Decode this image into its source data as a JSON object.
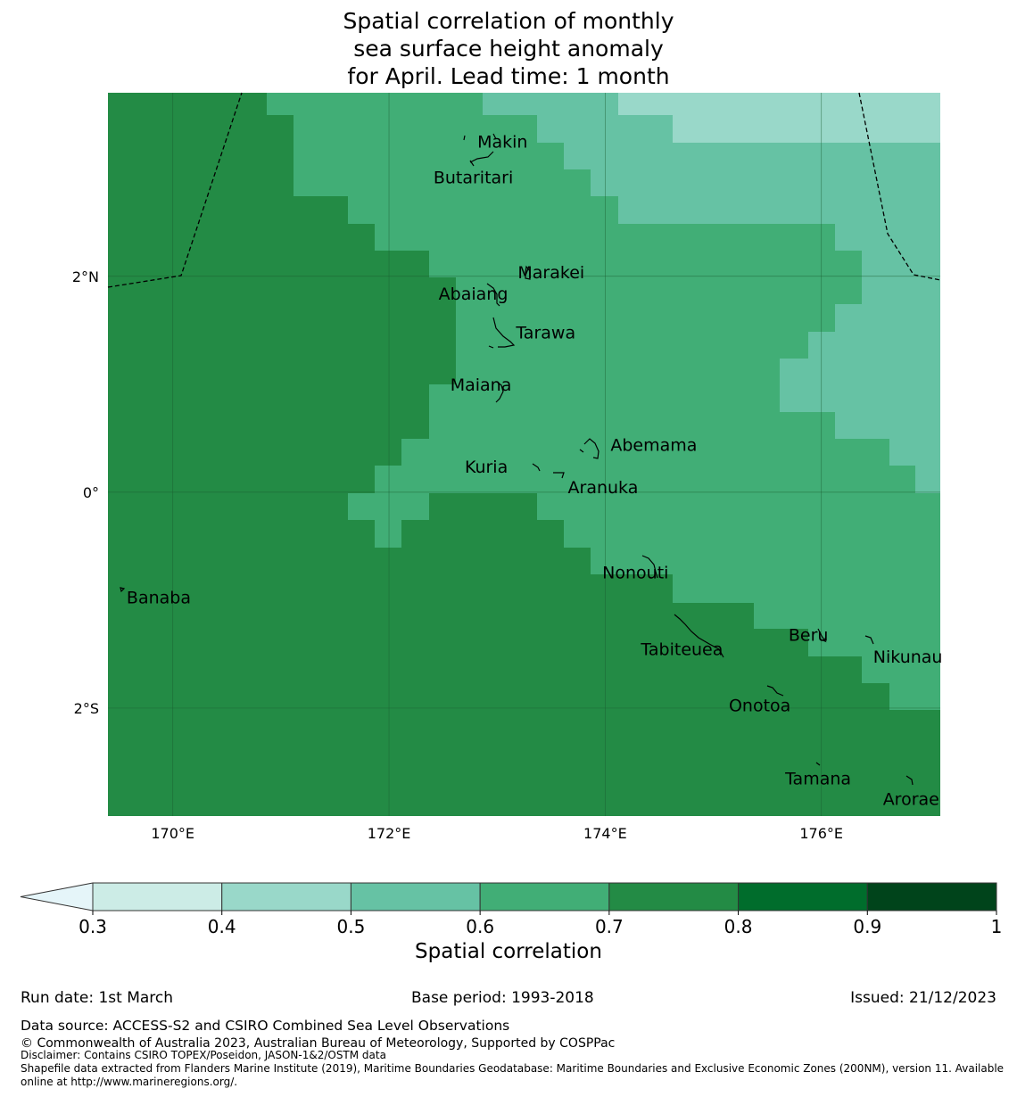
{
  "title": {
    "line1": "Spatial correlation of monthly",
    "line2": "sea surface height anomaly",
    "line3": "for April. Lead time: 1 month"
  },
  "map": {
    "lon_range": [
      169.4,
      177.1
    ],
    "lat_range": [
      -3.0,
      3.7
    ],
    "x_ticks": [
      {
        "value": 170,
        "label": "170°E"
      },
      {
        "value": 172,
        "label": "172°E"
      },
      {
        "value": 174,
        "label": "174°E"
      },
      {
        "value": 176,
        "label": "176°E"
      }
    ],
    "y_ticks": [
      {
        "value": 2,
        "label": "2°N"
      },
      {
        "value": 0,
        "label": "0°"
      },
      {
        "value": -2,
        "label": "2°S"
      }
    ],
    "colors": {
      "0.4-0.5": "#99d8c9",
      "0.5-0.6": "#66c2a4",
      "0.6-0.7": "#41ae76",
      "0.7-0.8": "#238b45",
      "gridline": "#1a5c30",
      "boundary": "#000000"
    },
    "places": [
      {
        "name": "Makin",
        "lon": 173.05,
        "lat": 3.25
      },
      {
        "name": "Butaritari",
        "lon": 172.78,
        "lat": 2.92
      },
      {
        "name": "Marakei",
        "lon": 173.5,
        "lat": 2.04
      },
      {
        "name": "Abaiang",
        "lon": 172.78,
        "lat": 1.84
      },
      {
        "name": "Tarawa",
        "lon": 173.45,
        "lat": 1.48
      },
      {
        "name": "Maiana",
        "lon": 172.85,
        "lat": 1.0
      },
      {
        "name": "Abemama",
        "lon": 174.45,
        "lat": 0.44
      },
      {
        "name": "Kuria",
        "lon": 172.9,
        "lat": 0.24
      },
      {
        "name": "Aranuka",
        "lon": 173.98,
        "lat": 0.05
      },
      {
        "name": "Nonouti",
        "lon": 174.28,
        "lat": -0.74
      },
      {
        "name": "Banaba",
        "lon": 169.87,
        "lat": -0.97
      },
      {
        "name": "Beru",
        "lon": 175.88,
        "lat": -1.32
      },
      {
        "name": "Tabiteuea",
        "lon": 174.71,
        "lat": -1.45
      },
      {
        "name": "Nikunau",
        "lon": 176.8,
        "lat": -1.52
      },
      {
        "name": "Onotoa",
        "lon": 175.43,
        "lat": -1.97
      },
      {
        "name": "Tamana",
        "lon": 175.97,
        "lat": -2.65
      },
      {
        "name": "Arorae",
        "lon": 176.83,
        "lat": -2.84
      }
    ]
  },
  "colorbar": {
    "label": "Spatial correlation",
    "ticks": [
      "0.3",
      "0.4",
      "0.5",
      "0.6",
      "0.7",
      "0.8",
      "0.9",
      "1"
    ],
    "colors": [
      "#ccece6",
      "#99d8c9",
      "#66c2a4",
      "#41ae76",
      "#238b45",
      "#006d2c",
      "#00441b"
    ],
    "extend_color": "#e5f5f9"
  },
  "footer": {
    "run_date": "Run date: 1st March",
    "base_period": "Base period: 1993-2018",
    "issued": "Issued: 21/12/2023",
    "data_source": "Data source: ACCESS-S2 and CSIRO Combined Sea Level Observations",
    "copyright": "© Commonwealth of Australia 2023, Australian Bureau of Meteorology, Supported by COSPPac",
    "disclaimer": "Disclaimer: Contains CSIRO TOPEX/Poseidon, JASON-1&2/OSTM data",
    "shapefile": "Shapefile data extracted from Flanders Marine Institute (2019), Maritime Boundaries Geodatabase: Maritime Boundaries and Exclusive Economic Zones (200NM), version 11. Available online at http://www.marineregions.org/."
  }
}
